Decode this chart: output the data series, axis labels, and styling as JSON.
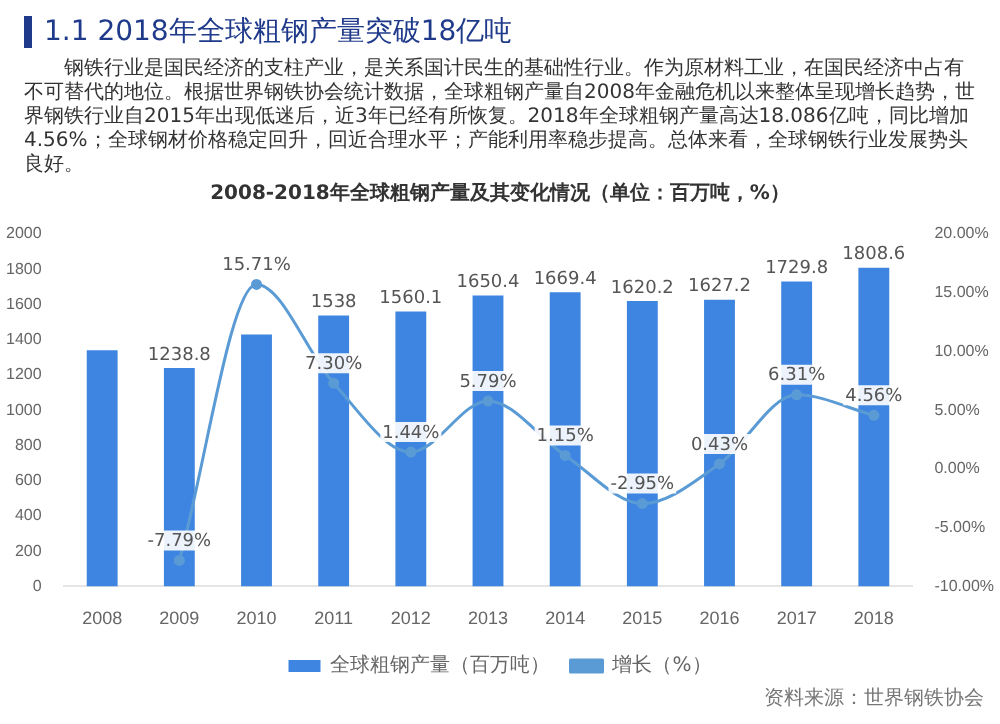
{
  "chart_data": {
    "type": "bar",
    "title": "1.1 2018年全球粗钢产量突破18亿吨",
    "subtitle": "2008-2018年全球粗钢产量及其变化情况（单位：百万吨，%）",
    "annotations": [
      "钢铁行业是国民经济的支柱产业，是关系国计民生的基础性行业。作为原材料工业，在国民经济中占有不可替代的地位。根据世界钢铁协会统计数据，全球粗钢产量自2008年金融危机以来整体呈现增长趋势，世界钢铁行业自2015年出现低迷后，近3年已经有所恢复。2018年全球粗钢产量高达18.086亿吨，同比增加4.56%；全球钢材价格稳定回升，回近合理水平；产能利用率稳步提高。总体来看，全球钢铁行业发展势头良好。",
      "资料来源：世界钢铁协会"
    ],
    "categories": [
      "2008",
      "2009",
      "2010",
      "2011",
      "2012",
      "2013",
      "2014",
      "2015",
      "2016",
      "2017",
      "2018"
    ],
    "series": [
      {
        "name": "全球粗钢产量（百万吨）",
        "color": "#3d85e0",
        "values": [
          1340,
          1238.8,
          1430,
          1538,
          1560.1,
          1650.4,
          1669.4,
          1620.2,
          1627.2,
          1729.8,
          1808.6
        ],
        "value_labels": [
          null,
          "1238.8",
          null,
          "1538",
          "1560.1",
          "1650.4",
          "1669.4",
          "1620.2",
          "1627.2",
          "1729.8",
          "1808.6"
        ]
      },
      {
        "name": "增长（%）",
        "type": "line",
        "axis": "y2",
        "color": "#5b9bd5",
        "values": [
          null,
          -7.79,
          15.71,
          7.3,
          1.44,
          5.79,
          1.15,
          -2.95,
          0.43,
          6.31,
          4.56
        ],
        "value_labels": [
          null,
          "-7.79%",
          "15.71%",
          "7.30%",
          "1.44%",
          "5.79%",
          "1.15%",
          "-2.95%",
          "0.43%",
          "6.31%",
          "4.56%"
        ]
      }
    ],
    "ylim": [
      0,
      2000
    ],
    "yticks": [
      0,
      200,
      400,
      600,
      800,
      1000,
      1200,
      1400,
      1600,
      1800,
      2000
    ],
    "y2lim": [
      -10,
      20
    ],
    "y2ticks": [
      {
        "value": -10,
        "label": "-10.00%"
      },
      {
        "value": -5,
        "label": "-5.00%"
      },
      {
        "value": 0,
        "label": "0.00%"
      },
      {
        "value": 5,
        "label": "5.00%"
      },
      {
        "value": 10,
        "label": "10.00%"
      },
      {
        "value": 15,
        "label": "15.00%"
      },
      {
        "value": 20,
        "label": "20.00%"
      }
    ],
    "legend": "bottom",
    "grid": false,
    "marker": "circle",
    "line_style": "solid"
  }
}
